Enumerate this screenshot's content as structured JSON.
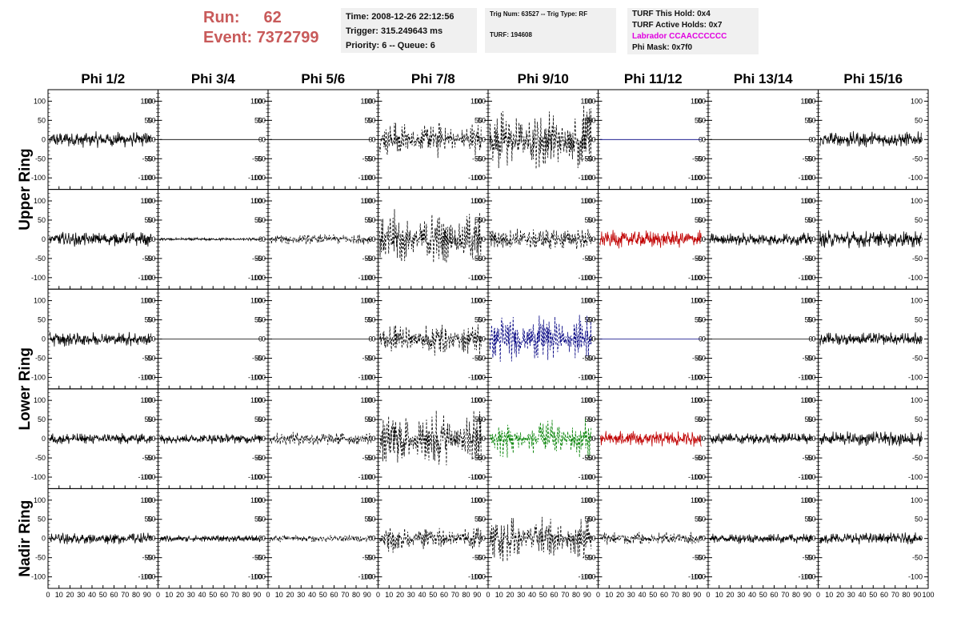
{
  "header": {
    "run_label": "Run:",
    "run_value": "62",
    "event_label": "Event:",
    "event_value": "7372799"
  },
  "info_box_1": {
    "time": "Time: 2008-12-26 22:12:56",
    "trigger": "Trigger: 315.249643 ms",
    "priority": "Priority: 6 -- Queue: 6"
  },
  "info_box_2": {
    "trig": "Trig Num: 63527 -- Trig Type: RF",
    "turf": "TURF: 194608"
  },
  "info_box_3": {
    "this_hold": "TURF This Hold: 0x4",
    "active_holds": "TURF Active Holds: 0x7",
    "labrador": "Labrador CCAACCCCCC",
    "phi_mask": "Phi Mask: 0x7f0"
  },
  "chart_data": {
    "type": "line",
    "columns": [
      "Phi 1/2",
      "Phi 3/4",
      "Phi 5/6",
      "Phi 7/8",
      "Phi 9/10",
      "Phi 11/12",
      "Phi 13/14",
      "Phi 15/16"
    ],
    "rows": [
      "Upper Ring",
      "Lower Ring",
      "Nadir Ring"
    ],
    "xlim": [
      0,
      100
    ],
    "ylim": [
      -130,
      130
    ],
    "x_ticks": [
      "0",
      "10",
      "20",
      "30",
      "40",
      "50",
      "60",
      "70",
      "80",
      "90",
      "100"
    ],
    "y_ticks": [
      "100",
      "50",
      "0",
      "-50",
      "-100"
    ],
    "panels": [
      [
        {
          "amp": 22,
          "style": "solid",
          "color": "#000000"
        },
        {
          "amp": 0,
          "style": "solid",
          "color": "#000000"
        },
        {
          "amp": 0,
          "style": "solid",
          "color": "#000000"
        },
        {
          "amp": 55,
          "style": "dashed",
          "color": "#000000",
          "burst": true
        },
        {
          "amp": 95,
          "style": "dashed",
          "color": "#000000",
          "burst": true
        },
        {
          "amp": 0,
          "style": "solid",
          "color": "#000080"
        },
        {
          "amp": 0,
          "style": "solid",
          "color": "#000000"
        },
        {
          "amp": 22,
          "style": "solid",
          "color": "#000000"
        }
      ],
      [
        {
          "amp": 20,
          "style": "solid",
          "color": "#000000"
        },
        {
          "amp": 4,
          "style": "solid",
          "color": "#000000"
        },
        {
          "amp": 14,
          "style": "dashed",
          "color": "#000000"
        },
        {
          "amp": 80,
          "style": "dashed",
          "color": "#000000",
          "burst": true
        },
        {
          "amp": 30,
          "style": "dashed",
          "color": "#000000"
        },
        {
          "amp": 25,
          "style": "solid",
          "color": "#c00000"
        },
        {
          "amp": 18,
          "style": "solid",
          "color": "#000000"
        },
        {
          "amp": 24,
          "style": "solid",
          "color": "#000000"
        }
      ],
      [
        {
          "amp": 20,
          "style": "solid",
          "color": "#000000"
        },
        {
          "amp": 0,
          "style": "solid",
          "color": "#000000"
        },
        {
          "amp": 0,
          "style": "solid",
          "color": "#000000"
        },
        {
          "amp": 50,
          "style": "dashed",
          "color": "#000000",
          "burst": true
        },
        {
          "amp": 75,
          "style": "dashed",
          "color": "#000080",
          "burst": true
        },
        {
          "amp": 0,
          "style": "solid",
          "color": "#000080"
        },
        {
          "amp": 0,
          "style": "solid",
          "color": "#000000"
        },
        {
          "amp": 18,
          "style": "solid",
          "color": "#000000"
        }
      ],
      [
        {
          "amp": 16,
          "style": "solid",
          "color": "#000000"
        },
        {
          "amp": 14,
          "style": "solid",
          "color": "#000000"
        },
        {
          "amp": 18,
          "style": "dashed",
          "color": "#000000"
        },
        {
          "amp": 90,
          "style": "dashed",
          "color": "#000000",
          "burst": true
        },
        {
          "amp": 55,
          "style": "dashed",
          "color": "#008000",
          "burst": true
        },
        {
          "amp": 22,
          "style": "solid",
          "color": "#c00000"
        },
        {
          "amp": 16,
          "style": "solid",
          "color": "#000000"
        },
        {
          "amp": 20,
          "style": "solid",
          "color": "#000000"
        }
      ],
      [
        {
          "amp": 16,
          "style": "solid",
          "color": "#000000"
        },
        {
          "amp": 10,
          "style": "solid",
          "color": "#000000"
        },
        {
          "amp": 10,
          "style": "dashed",
          "color": "#000000"
        },
        {
          "amp": 40,
          "style": "dashed",
          "color": "#000000",
          "burst": true
        },
        {
          "amp": 65,
          "style": "dashed",
          "color": "#000000",
          "burst": true
        },
        {
          "amp": 18,
          "style": "dashed",
          "color": "#000000"
        },
        {
          "amp": 14,
          "style": "solid",
          "color": "#000000"
        },
        {
          "amp": 16,
          "style": "solid",
          "color": "#000000"
        }
      ]
    ]
  }
}
